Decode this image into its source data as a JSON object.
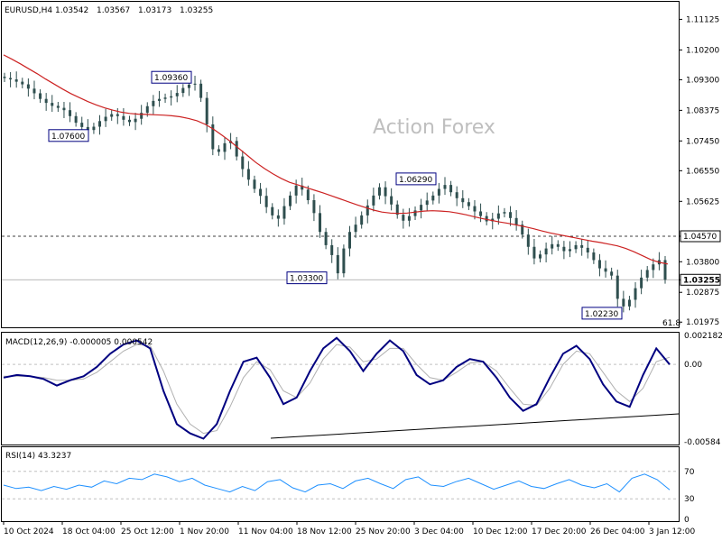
{
  "header": {
    "symbol": "EURUSD,H4",
    "open": "1.03542",
    "high": "1.03567",
    "low": "1.03173",
    "close": "1.03255"
  },
  "watermark": "Action Forex",
  "colors": {
    "candles": "#2f4f4f",
    "ma": "#cc2222",
    "macd": "#000080",
    "signal": "#b0b0b0",
    "rsi": "#1e90ff",
    "grid": "#c0c0c0"
  },
  "chart_data": [
    {
      "type": "candlestick",
      "title": "EURUSD,H4",
      "ylim": [
        1.019,
        1.116
      ],
      "yticks": [
        "1.11125",
        "1.10200",
        "1.09300",
        "1.08375",
        "1.07450",
        "1.06550",
        "1.05625",
        "1.04570",
        "1.03800",
        "1.03255",
        "1.02875",
        "1.01975"
      ],
      "xticks": [
        "10 Oct 2024",
        "18 Oct 04:00",
        "25 Oct 12:00",
        "1 Nov 20:00",
        "11 Nov 04:00",
        "18 Nov 12:00",
        "25 Nov 20:00",
        "3 Dec 04:00",
        "10 Dec 12:00",
        "17 Dec 20:00",
        "26 Dec 04:00",
        "3 Jan 12:00"
      ],
      "series": [
        {
          "values": [
            1.0935,
            1.0931,
            1.0924,
            1.0916,
            1.0903,
            1.0889,
            1.0872,
            1.086,
            1.0851,
            1.0845,
            1.0838,
            1.082,
            1.08,
            1.0787,
            1.0778,
            1.0788,
            1.0805,
            1.0818,
            1.0826,
            1.082,
            1.0809,
            1.0802,
            1.0812,
            1.083,
            1.085,
            1.0866,
            1.0872,
            1.0876,
            1.088,
            1.089,
            1.0905,
            1.0915,
            1.0918,
            1.0875,
            1.0795,
            1.072,
            1.0712,
            1.0738,
            1.0745,
            1.0698,
            1.066,
            1.0628,
            1.06,
            1.0579,
            1.0545,
            1.052,
            1.051,
            1.0548,
            1.058,
            1.061,
            1.0598,
            1.0566,
            1.0527,
            1.047,
            1.043,
            1.04,
            1.0345,
            1.042,
            1.047,
            1.0492,
            1.052,
            1.055,
            1.058,
            1.0605,
            1.0578,
            1.0553,
            1.0522,
            1.0504,
            1.0518,
            1.0535,
            1.0552,
            1.0565,
            1.058,
            1.06,
            1.0612,
            1.059,
            1.0572,
            1.056,
            1.0548,
            1.0532,
            1.0518,
            1.0502,
            1.051,
            1.0526,
            1.053,
            1.0512,
            1.0492,
            1.0462,
            1.0425,
            1.039,
            1.0402,
            1.042,
            1.0433,
            1.0425,
            1.0412,
            1.0418,
            1.043,
            1.0422,
            1.0408,
            1.0385,
            1.036,
            1.035,
            1.0338,
            1.0268,
            1.0245,
            1.0265,
            1.03,
            1.0332,
            1.0355,
            1.0372,
            1.0385,
            1.03255
          ]
        }
      ],
      "ma_values": [
        1.1005,
        1.0992,
        1.0978,
        1.0963,
        1.0948,
        1.0932,
        1.0917,
        1.0902,
        1.0888,
        1.0876,
        1.0864,
        1.0854,
        1.0845,
        1.0838,
        1.0832,
        1.0828,
        1.0826,
        1.0825,
        1.0824,
        1.0823,
        1.0821,
        1.0818,
        1.0813,
        1.0806,
        1.0795,
        1.078,
        1.0762,
        1.0743,
        1.0722,
        1.0701,
        1.068,
        1.0662,
        1.0646,
        1.0632,
        1.062,
        1.0612,
        1.0604,
        1.0596,
        1.0588,
        1.0579,
        1.057,
        1.0561,
        1.0552,
        1.0544,
        1.0536,
        1.053,
        1.0527,
        1.0526,
        1.0527,
        1.053,
        1.0533,
        1.0534,
        1.0533,
        1.0531,
        1.0527,
        1.0522,
        1.0516,
        1.051,
        1.0505,
        1.05,
        1.0496,
        1.0491,
        1.0486,
        1.048,
        1.0473,
        1.0467,
        1.0462,
        1.0457,
        1.0452,
        1.0447,
        1.0442,
        1.0438,
        1.0433,
        1.0428,
        1.042,
        1.041,
        1.0398,
        1.0386,
        1.0378,
        1.0373
      ],
      "annotations": [
        {
          "label": "1.09360",
          "value": 1.0936
        },
        {
          "label": "1.07600",
          "value": 1.076
        },
        {
          "label": "1.06290",
          "value": 1.0629
        },
        {
          "label": "1.03300",
          "value": 1.033
        },
        {
          "label": "1.02230",
          "value": 1.0223
        },
        {
          "label": "1.04570",
          "value": 1.0457
        }
      ],
      "fib_label": "61.8",
      "current_price": "1.03255",
      "hline": "1.04570"
    },
    {
      "type": "line",
      "title": "MACD(12,26,9) -0.000005 0.000542",
      "ylim": [
        -0.00584,
        0.002182
      ],
      "yticks": [
        "0.002182",
        "0.00",
        "-0.00584"
      ],
      "series": [
        {
          "name": "MACD",
          "values": [
            -0.001,
            -0.0008,
            -0.0009,
            -0.0011,
            -0.0016,
            -0.0012,
            -0.0009,
            -0.0002,
            0.0008,
            0.0015,
            0.0018,
            0.0012,
            -0.002,
            -0.0045,
            -0.0052,
            -0.0056,
            -0.0045,
            -0.002,
            0.0002,
            0.0005,
            -0.001,
            -0.003,
            -0.0025,
            -0.0005,
            0.0012,
            0.002,
            0.001,
            -0.0005,
            0.0008,
            0.0018,
            0.001,
            -0.0008,
            -0.0015,
            -0.0012,
            -0.0002,
            0.0004,
            0.0002,
            -0.001,
            -0.0025,
            -0.0035,
            -0.003,
            -0.001,
            0.0008,
            0.0014,
            0.0004,
            -0.0015,
            -0.0028,
            -0.0032,
            -0.0008,
            0.0012,
            -1e-05
          ]
        },
        {
          "name": "Signal",
          "values": [
            -0.0009,
            -0.0009,
            -0.0009,
            -0.001,
            -0.0012,
            -0.0012,
            -0.0011,
            -0.0006,
            0.0002,
            0.001,
            0.0015,
            0.0014,
            -0.0005,
            -0.003,
            -0.0045,
            -0.0052,
            -0.005,
            -0.0032,
            -0.001,
            0.0002,
            -0.0004,
            -0.002,
            -0.0025,
            -0.0014,
            0.0004,
            0.0015,
            0.0013,
            0.0002,
            0.0004,
            0.0012,
            0.0012,
            0.0,
            -0.001,
            -0.0012,
            -0.0006,
            0.0001,
            0.0002,
            -0.0005,
            -0.0018,
            -0.003,
            -0.0031,
            -0.0018,
            0.0,
            0.001,
            0.0008,
            -0.0006,
            -0.002,
            -0.0028,
            -0.0018,
            0.0002,
            0.00054
          ]
        }
      ]
    },
    {
      "type": "line",
      "title": "RSI(14) 43.3237",
      "ylim": [
        0,
        100
      ],
      "yticks": [
        "70",
        "30",
        "0"
      ],
      "series": [
        {
          "name": "RSI",
          "values": [
            50,
            45,
            47,
            42,
            48,
            44,
            50,
            47,
            56,
            52,
            60,
            58,
            66,
            62,
            55,
            60,
            50,
            45,
            40,
            48,
            42,
            55,
            58,
            46,
            40,
            50,
            52,
            45,
            56,
            60,
            52,
            45,
            58,
            62,
            50,
            48,
            55,
            60,
            52,
            44,
            50,
            56,
            48,
            45,
            52,
            58,
            50,
            46,
            52,
            40,
            60,
            66,
            58,
            43
          ]
        }
      ]
    }
  ]
}
